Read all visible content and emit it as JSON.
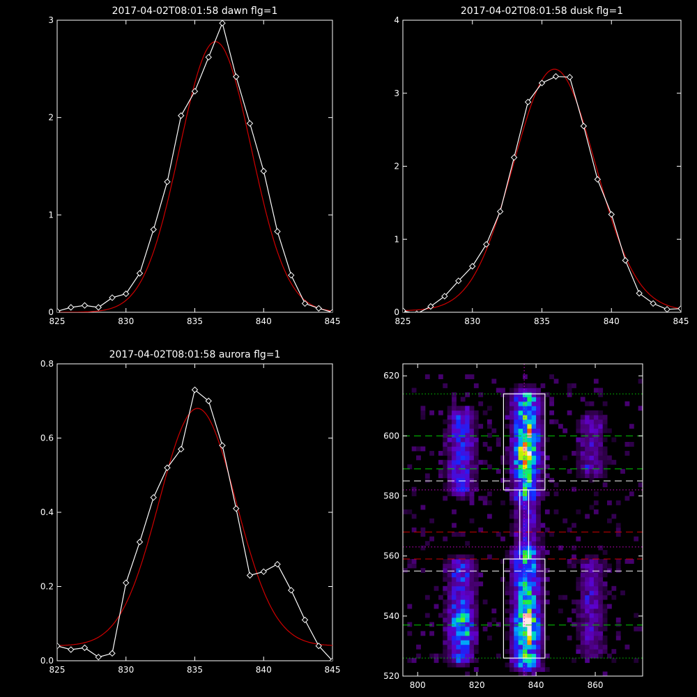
{
  "colors": {
    "background": "#000000",
    "axes": "#ffffff",
    "data": "#ffffff",
    "fit": "#d00000",
    "green_line": "#00d000",
    "red_line": "#d00000",
    "magenta_line": "#d000d0"
  },
  "chart_data": [
    {
      "type": "line",
      "title": "2017-04-02T08:01:58 dawn flg=1",
      "xlim": [
        825,
        845
      ],
      "ylim": [
        0,
        3
      ],
      "xticks": [
        825,
        830,
        835,
        840,
        845
      ],
      "yticks": [
        0,
        1,
        2,
        3
      ],
      "series": [
        {
          "role": "data",
          "marker": "diamond",
          "x": [
            825,
            826,
            827,
            828,
            829,
            830,
            831,
            832,
            833,
            834,
            835,
            836,
            837,
            838,
            839,
            840,
            841,
            842,
            843,
            844,
            845
          ],
          "y": [
            0.01,
            0.05,
            0.07,
            0.05,
            0.15,
            0.19,
            0.4,
            0.85,
            1.34,
            2.02,
            2.27,
            2.62,
            2.97,
            2.42,
            1.94,
            1.45,
            0.83,
            0.38,
            0.09,
            0.04,
            0.0
          ]
        },
        {
          "role": "fit",
          "gaussian": {
            "center": 836.5,
            "sigma": 2.6,
            "amplitude": 2.78,
            "offset": 0.0
          }
        }
      ]
    },
    {
      "type": "line",
      "title": "2017-04-02T08:01:58 dusk flg=1",
      "xlim": [
        825,
        845
      ],
      "ylim": [
        0,
        4
      ],
      "xticks": [
        825,
        830,
        835,
        840,
        845
      ],
      "yticks": [
        0,
        1,
        2,
        3,
        4
      ],
      "series": [
        {
          "role": "data",
          "marker": "diamond",
          "x": [
            825,
            826,
            827,
            828,
            829,
            830,
            831,
            832,
            833,
            834,
            835,
            836,
            837,
            838,
            839,
            840,
            841,
            842,
            843,
            844,
            845
          ],
          "y": [
            0.02,
            -0.02,
            0.08,
            0.22,
            0.43,
            0.63,
            0.93,
            1.38,
            2.12,
            2.88,
            3.14,
            3.23,
            3.22,
            2.55,
            1.82,
            1.34,
            0.71,
            0.26,
            0.12,
            0.04,
            0.05
          ]
        },
        {
          "role": "fit",
          "gaussian": {
            "center": 835.9,
            "sigma": 2.95,
            "amplitude": 3.31,
            "offset": 0.02
          }
        }
      ]
    },
    {
      "type": "line",
      "title": "2017-04-02T08:01:58 aurora flg=1",
      "xlim": [
        825,
        845
      ],
      "ylim": [
        0,
        0.8
      ],
      "xticks": [
        825,
        830,
        835,
        840,
        845
      ],
      "yticks": [
        0,
        0.2,
        0.4,
        0.6,
        0.8
      ],
      "ytick_labels": [
        "0.0",
        "0.2",
        "0.4",
        "0.6",
        "0.8"
      ],
      "series": [
        {
          "role": "data",
          "marker": "diamond",
          "x": [
            825,
            826,
            827,
            828,
            829,
            830,
            831,
            832,
            833,
            834,
            835,
            836,
            837,
            838,
            839,
            840,
            841,
            842,
            843,
            844,
            845
          ],
          "y": [
            0.04,
            0.03,
            0.035,
            0.01,
            0.02,
            0.21,
            0.32,
            0.44,
            0.52,
            0.57,
            0.73,
            0.7,
            0.58,
            0.41,
            0.23,
            0.24,
            0.26,
            0.19,
            0.11,
            0.04,
            0.0
          ]
        },
        {
          "role": "fit",
          "gaussian": {
            "center": 835.2,
            "sigma": 2.8,
            "amplitude": 0.64,
            "offset": 0.04
          }
        }
      ]
    },
    {
      "type": "heatmap",
      "title": "",
      "xlim": [
        795,
        876
      ],
      "ylim": [
        520,
        624
      ],
      "xticks": [
        800,
        820,
        840,
        860
      ],
      "yticks": [
        520,
        540,
        560,
        580,
        600,
        620
      ],
      "colormap": "rainbow (black-purple-blue-cyan-green-yellow-red-white)",
      "bright_bands": [
        {
          "x_center": 814,
          "y_range": [
            582,
            606
          ],
          "peak": 0.55
        },
        {
          "x_center": 836,
          "y_range": [
            580,
            612
          ],
          "peak": 1.0,
          "hot_spot": [
            836,
            596
          ]
        },
        {
          "x_center": 858,
          "y_range": [
            588,
            604
          ],
          "peak": 0.35
        },
        {
          "x_center": 814,
          "y_range": [
            526,
            556
          ],
          "peak": 0.6,
          "hot_spot": [
            814,
            536
          ]
        },
        {
          "x_center": 836,
          "y_range": [
            524,
            560
          ],
          "peak": 1.0,
          "hot_spot": [
            836,
            535
          ]
        },
        {
          "x_center": 858,
          "y_range": [
            528,
            556
          ],
          "peak": 0.35
        },
        {
          "x_center": 836,
          "y_range": [
            560,
            580
          ],
          "peak": 0.45
        }
      ],
      "boxes": [
        {
          "x": [
            829,
            843
          ],
          "y": [
            582,
            614
          ]
        },
        {
          "x": [
            829,
            843
          ],
          "y": [
            526,
            559
          ]
        },
        {
          "x": [
            834.5,
            837.5
          ],
          "y": [
            559,
            582
          ]
        }
      ],
      "hlines": [
        {
          "y": 614,
          "color": "green",
          "style": "dotted"
        },
        {
          "y": 600,
          "color": "green",
          "style": "dashed"
        },
        {
          "y": 589,
          "color": "green",
          "style": "dashed"
        },
        {
          "y": 585,
          "color": "white",
          "style": "dashed"
        },
        {
          "y": 582,
          "color": "magenta",
          "style": "dotted"
        },
        {
          "y": 568,
          "color": "red",
          "style": "dashed"
        },
        {
          "y": 563,
          "color": "magenta",
          "style": "dotted"
        },
        {
          "y": 559,
          "color": "red",
          "style": "dashed"
        },
        {
          "y": 555,
          "color": "white",
          "style": "dashed"
        },
        {
          "y": 537,
          "color": "green",
          "style": "dashed"
        },
        {
          "y": 526,
          "color": "green",
          "style": "dotted"
        }
      ],
      "vlines": [
        {
          "x": 836,
          "color": "magenta",
          "style": "dotted"
        }
      ]
    }
  ]
}
